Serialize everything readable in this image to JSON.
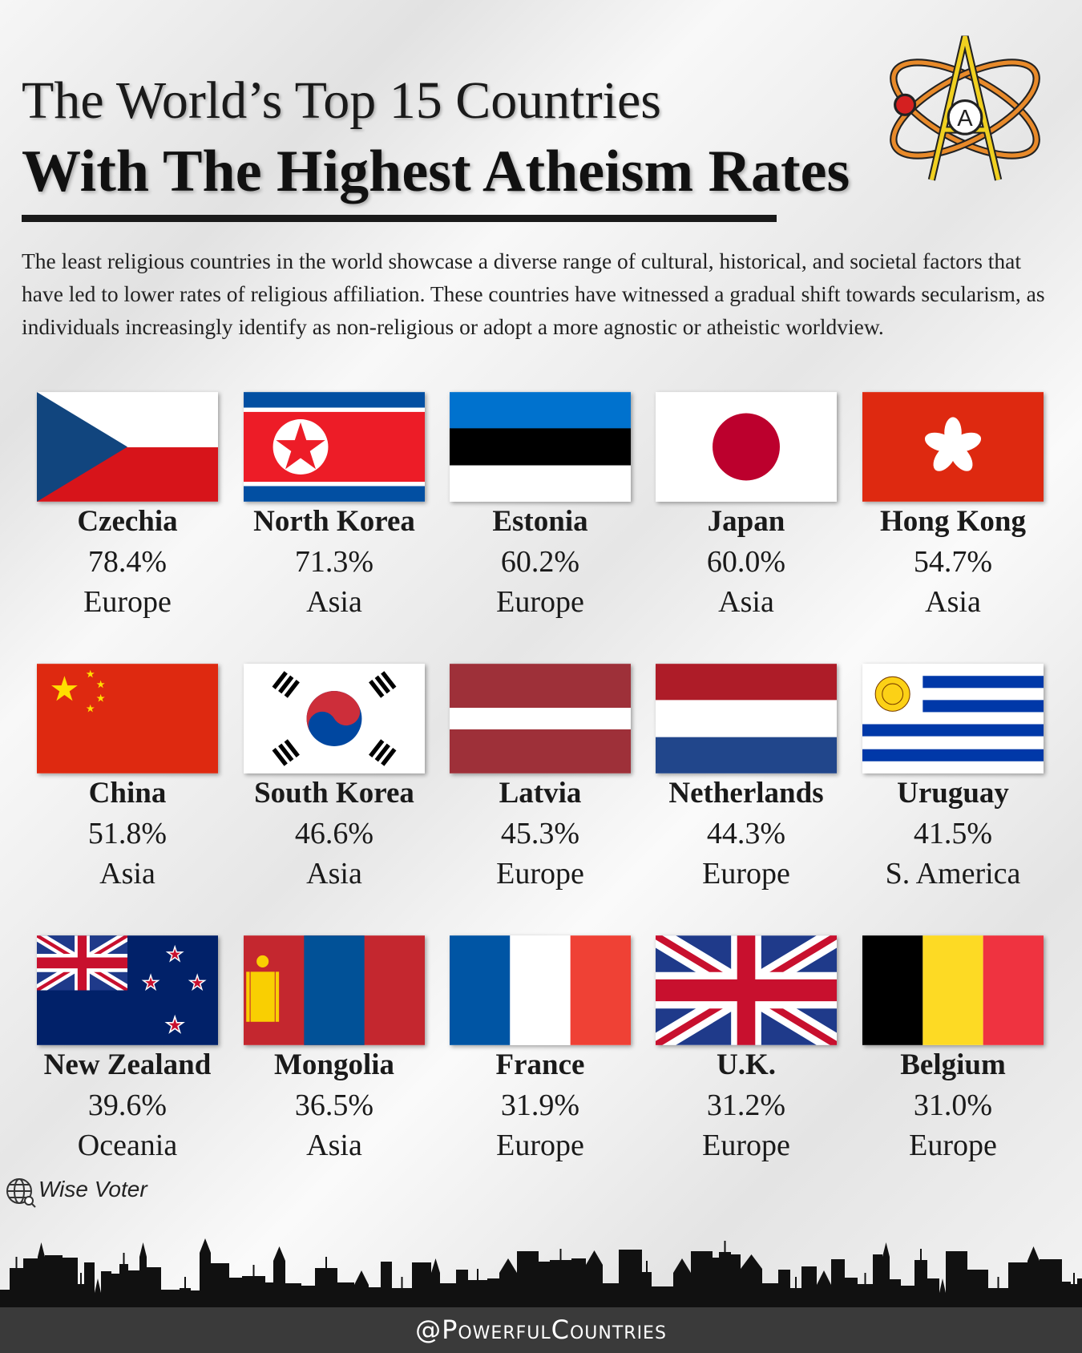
{
  "header": {
    "title_line1": "The World’s Top 15 Countries",
    "title_line2": "With The Highest Atheism Rates",
    "description": "The least religious countries in the world showcase a diverse range of cultural, historical, and societal factors that have led to lower rates of religious affiliation. These countries have witnessed a gradual shift towards secularism, as individuals increasingly identify as non-religious or adopt a more agnostic or atheistic worldview."
  },
  "items": [
    {
      "name": "Czechia",
      "rate": "78.4%",
      "region": "Europe"
    },
    {
      "name": "North Korea",
      "rate": "71.3%",
      "region": "Asia"
    },
    {
      "name": "Estonia",
      "rate": "60.2%",
      "region": "Europe"
    },
    {
      "name": "Japan",
      "rate": "60.0%",
      "region": "Asia"
    },
    {
      "name": "Hong Kong",
      "rate": "54.7%",
      "region": "Asia"
    },
    {
      "name": "China",
      "rate": "51.8%",
      "region": "Asia"
    },
    {
      "name": "South Korea",
      "rate": "46.6%",
      "region": "Asia"
    },
    {
      "name": "Latvia",
      "rate": "45.3%",
      "region": "Europe"
    },
    {
      "name": "Netherlands",
      "rate": "44.3%",
      "region": "Europe"
    },
    {
      "name": "Uruguay",
      "rate": "41.5%",
      "region": "S. America"
    },
    {
      "name": "New Zealand",
      "rate": "39.6%",
      "region": "Oceania"
    },
    {
      "name": "Mongolia",
      "rate": "36.5%",
      "region": "Asia"
    },
    {
      "name": "France",
      "rate": "31.9%",
      "region": "Europe"
    },
    {
      "name": "U.K.",
      "rate": "31.2%",
      "region": "Europe"
    },
    {
      "name": "Belgium",
      "rate": "31.0%",
      "region": "Europe"
    }
  ],
  "source": "Wise Voter",
  "footer": "@PowerfulCountries"
}
